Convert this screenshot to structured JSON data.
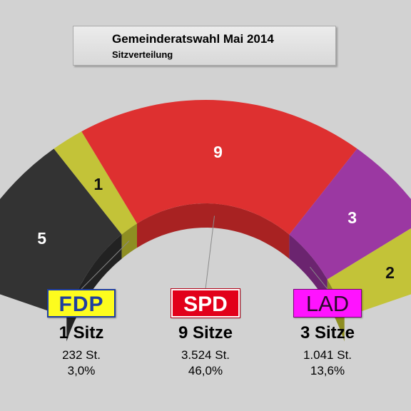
{
  "title": "Gemeinderatswahl Mai 2014",
  "subtitle": "Sitzverteilung",
  "chart_data": {
    "type": "pie",
    "subtype": "half-donut seat distribution",
    "slices": [
      {
        "seats": "5",
        "value": 5,
        "color": "#333333",
        "side": "#222222"
      },
      {
        "seats": "1",
        "value": 1,
        "color": "#c3c338",
        "side": "#8e8e22"
      },
      {
        "seats": "9",
        "value": 9,
        "color": "#de3030",
        "side": "#a82222"
      },
      {
        "seats": "3",
        "value": 3,
        "color": "#9b38a2",
        "side": "#6b246f"
      },
      {
        "seats": "2",
        "value": 2,
        "color": "#c3c338",
        "side": "#8e8e22"
      }
    ],
    "parties": [
      {
        "name": "FDP",
        "seats_text": "1 Sitz",
        "votes": "232 St.",
        "percent": "3,0%",
        "slice": 1
      },
      {
        "name": "SPD",
        "seats_text": "9 Sitze",
        "votes": "3.524 St.",
        "percent": "46,0%",
        "slice": 2
      },
      {
        "name": "LAD",
        "seats_text": "3 Sitze",
        "votes": "1.041 St.",
        "percent": "13,6%",
        "slice": 3
      }
    ]
  }
}
